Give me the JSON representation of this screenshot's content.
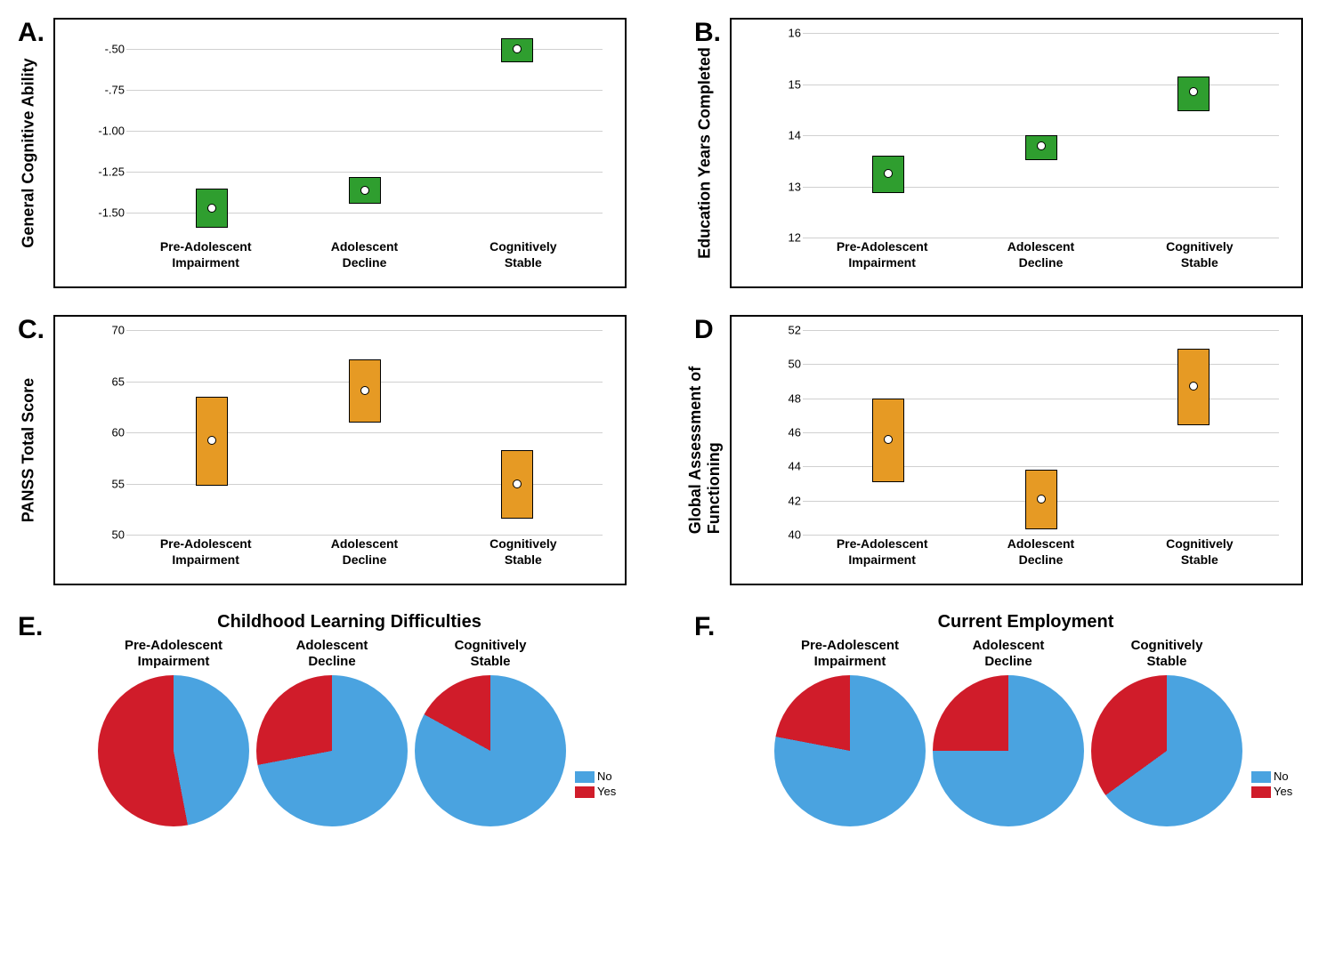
{
  "categories": [
    "Pre-Adolescent\nImpairment",
    "Adolescent\nDecline",
    "Cognitively\nStable"
  ],
  "panels": {
    "A": {
      "label": "A.",
      "ylabel": "General Cognitive Ability",
      "ymin": -1.65,
      "ymax": -0.4,
      "yticks": [
        -0.5,
        -0.75,
        -1.0,
        -1.25,
        -1.5
      ],
      "ytick_labels": [
        "-.50",
        "-.75",
        "-1.00",
        "-1.25",
        "-1.50"
      ],
      "fill": "#2f9e2f",
      "stroke": "#000000",
      "boxes": [
        {
          "low": -1.58,
          "high": -1.35,
          "mid": -1.47
        },
        {
          "low": -1.43,
          "high": -1.28,
          "mid": -1.36
        },
        {
          "low": -0.57,
          "high": -0.43,
          "mid": -0.5
        }
      ]
    },
    "B": {
      "label": "B.",
      "ylabel": "Education Years Completed",
      "ymin": 12,
      "ymax": 16,
      "yticks": [
        12,
        13,
        14,
        15,
        16
      ],
      "ytick_labels": [
        "12",
        "13",
        "14",
        "15",
        "16"
      ],
      "fill": "#2f9e2f",
      "stroke": "#000000",
      "boxes": [
        {
          "low": 12.9,
          "high": 13.6,
          "mid": 13.25
        },
        {
          "low": 13.55,
          "high": 14.0,
          "mid": 13.8
        },
        {
          "low": 14.5,
          "high": 15.15,
          "mid": 14.85
        }
      ]
    },
    "C": {
      "label": "C.",
      "ylabel": "PANSS Total Score",
      "ymin": 50,
      "ymax": 70,
      "yticks": [
        50,
        55,
        60,
        65,
        70
      ],
      "ytick_labels": [
        "50",
        "55",
        "60",
        "65",
        "70"
      ],
      "fill": "#e69a24",
      "stroke": "#000000",
      "boxes": [
        {
          "low": 55.0,
          "high": 63.5,
          "mid": 59.2
        },
        {
          "low": 61.1,
          "high": 67.1,
          "mid": 64.1
        },
        {
          "low": 51.7,
          "high": 58.3,
          "mid": 55.0
        }
      ]
    },
    "D": {
      "label": "D",
      "ylabel": "Global Assessment of\nFunctioning",
      "ymin": 40,
      "ymax": 52,
      "yticks": [
        40,
        42,
        44,
        46,
        48,
        50,
        52
      ],
      "ytick_labels": [
        "40",
        "42",
        "44",
        "46",
        "48",
        "50",
        "52"
      ],
      "fill": "#e69a24",
      "stroke": "#000000",
      "boxes": [
        {
          "low": 43.2,
          "high": 48.0,
          "mid": 45.6
        },
        {
          "low": 40.4,
          "high": 43.8,
          "mid": 42.1
        },
        {
          "low": 46.5,
          "high": 50.9,
          "mid": 48.7
        }
      ]
    },
    "E": {
      "label": "E.",
      "title": "Childhood Learning Difficulties",
      "no_color": "#4aa3e0",
      "yes_color": "#d01c2a",
      "slices": [
        {
          "yes": 53,
          "start": 0
        },
        {
          "yes": 28,
          "start": 0
        },
        {
          "yes": 17,
          "start": 0
        }
      ],
      "legend": {
        "no": "No",
        "yes": "Yes"
      }
    },
    "F": {
      "label": "F.",
      "title": "Current Employment",
      "no_color": "#4aa3e0",
      "yes_color": "#d01c2a",
      "slices": [
        {
          "yes": 22,
          "start": 0
        },
        {
          "yes": 25,
          "start": 0
        },
        {
          "yes": 35,
          "start": 0
        }
      ],
      "legend": {
        "no": "No",
        "yes": "Yes"
      }
    }
  },
  "fonts": {
    "axis_label": 18,
    "tick": 13,
    "x_label": 14,
    "panel_label": 30,
    "pie_title": 20,
    "pie_sub": 15
  }
}
